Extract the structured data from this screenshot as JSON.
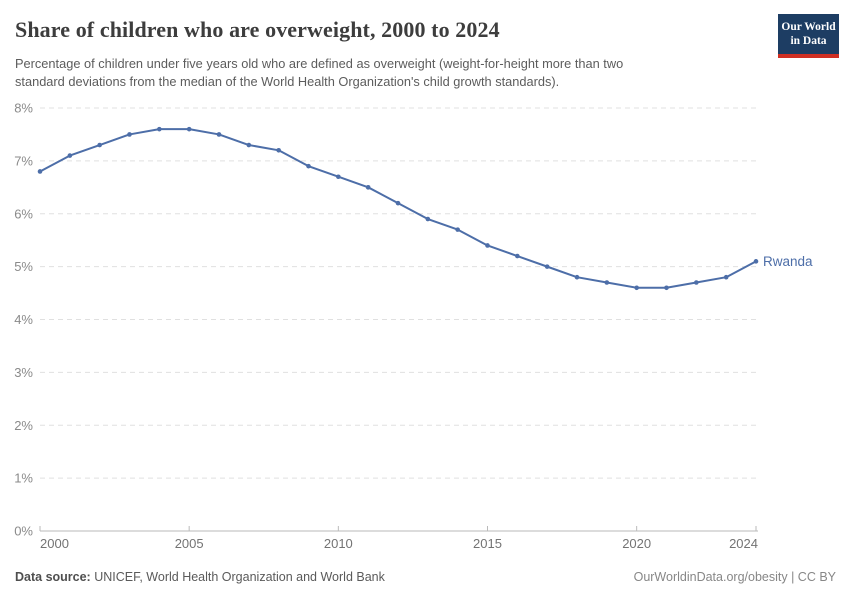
{
  "header": {
    "title": "Share of children who are overweight, 2000 to 2024",
    "subtitle": "Percentage of children under five years old who are defined as overweight (weight-for-height more than two\nstandard deviations from the median of the World Health Organization's child growth standards)."
  },
  "logo": {
    "line1": "Our World",
    "line2": "in Data"
  },
  "footer": {
    "datasource_label": "Data source:",
    "datasource_value": "UNICEF, World Health Organization and World Bank",
    "credit": "OurWorldinData.org/obesity | CC BY"
  },
  "colors": {
    "line": "#4d6ea8",
    "series_label": "#4d6ea8",
    "logo_background": "#1d3d63",
    "logo_accent": "#cf2f23",
    "grid": "#e0e0e0",
    "axis": "#bababa",
    "x_tick_label": "#737373",
    "y_tick_label": "#8a8a8a"
  },
  "chart_data": {
    "type": "line",
    "title": "Share of children who are overweight, 2000 to 2024",
    "xlabel": "",
    "ylabel": "",
    "unit": "%",
    "xlim": [
      2000,
      2024
    ],
    "ylim": [
      0,
      8
    ],
    "xticks": [
      2000,
      2005,
      2010,
      2015,
      2020,
      2024
    ],
    "yticks": [
      0,
      1,
      2,
      3,
      4,
      5,
      6,
      7,
      8
    ],
    "grid": "horizontal-dashed",
    "legend": "end-of-line-label",
    "series": [
      {
        "name": "Rwanda",
        "color": "#4d6ea8",
        "x": [
          2000,
          2001,
          2002,
          2003,
          2004,
          2005,
          2006,
          2007,
          2008,
          2009,
          2010,
          2011,
          2012,
          2013,
          2014,
          2015,
          2016,
          2017,
          2018,
          2019,
          2020,
          2021,
          2022,
          2023,
          2024
        ],
        "values": [
          6.8,
          7.1,
          7.3,
          7.5,
          7.6,
          7.6,
          7.5,
          7.3,
          7.2,
          6.9,
          6.7,
          6.5,
          6.2,
          5.9,
          5.7,
          5.4,
          5.2,
          5.0,
          4.8,
          4.7,
          4.6,
          4.6,
          4.7,
          4.8,
          5.1
        ]
      }
    ]
  }
}
